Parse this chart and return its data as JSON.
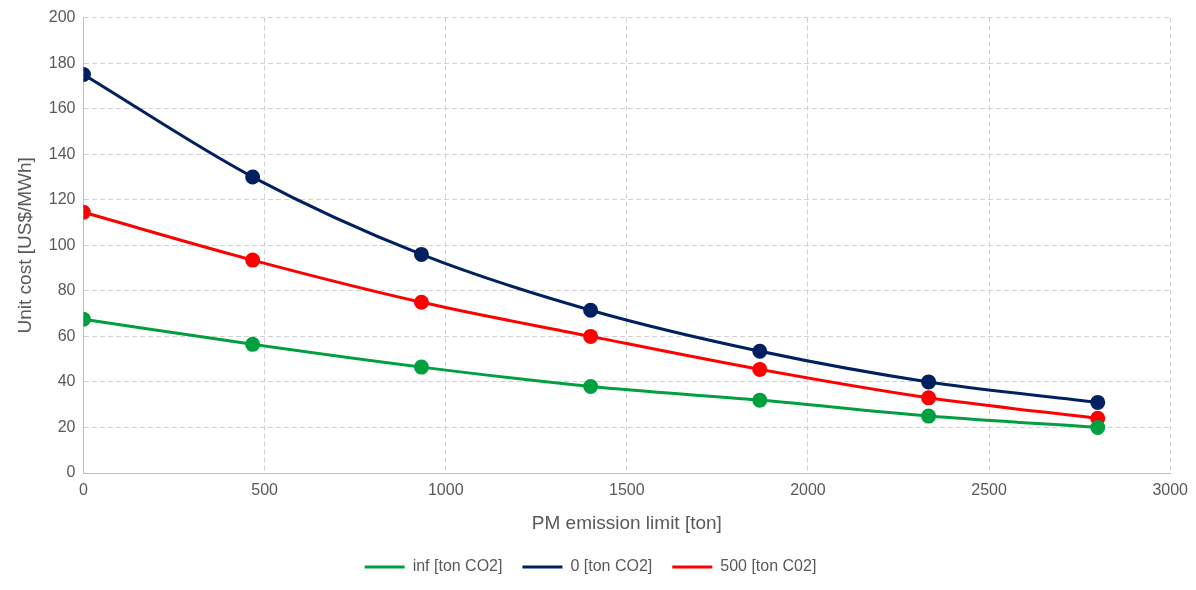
{
  "chart_data": {
    "type": "line",
    "xlabel": "PM emission limit [ton]",
    "ylabel": "Unit cost [US$/MWh]",
    "x": [
      0,
      467,
      933,
      1400,
      1867,
      2333,
      2800
    ],
    "series": [
      {
        "name": "inf [ton CO2]",
        "color": "#00a040",
        "values": [
          67.5,
          56.5,
          46.5,
          38,
          32,
          25,
          20
        ]
      },
      {
        "name": "0 [ton CO2]",
        "color": "#002060",
        "values": [
          175,
          130,
          96,
          71.5,
          53.5,
          40,
          31
        ]
      },
      {
        "name": "500 [ton C02]",
        "color": "#ff0000",
        "values": [
          114.5,
          93.5,
          75,
          60,
          45.5,
          33,
          24
        ]
      }
    ],
    "xlim": [
      0,
      3000
    ],
    "xticks": [
      0,
      500,
      1000,
      1500,
      2000,
      2500,
      3000
    ],
    "ylim": [
      0,
      200
    ],
    "yticks": [
      0,
      20,
      40,
      60,
      80,
      100,
      120,
      140,
      160,
      180,
      200
    ],
    "grid": true,
    "legend": "bottom",
    "marker": "circle",
    "line_style": "solid"
  }
}
